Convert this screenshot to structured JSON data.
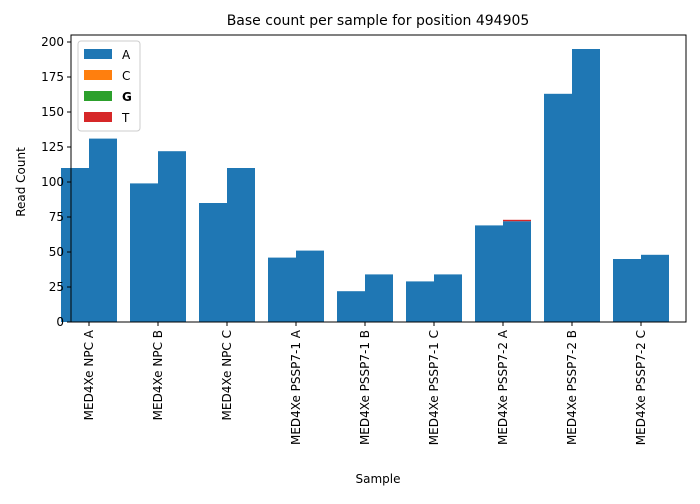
{
  "chart_data": {
    "type": "bar",
    "title": "Base count per sample for position 494905",
    "xlabel": "Sample",
    "ylabel": "Read Count",
    "ylim": [
      0,
      205
    ],
    "yticks": [
      0,
      25,
      50,
      75,
      100,
      125,
      150,
      175,
      200
    ],
    "grid": false,
    "legend_position": "upper-left",
    "categories": [
      "MED4Xe NPC A",
      "MED4Xe NPC B",
      "MED4Xe NPC C",
      "MED4Xe PSSP7-1 A",
      "MED4Xe PSSP7-1 B",
      "MED4Xe PSSP7-1 C",
      "MED4Xe PSSP7-2 A",
      "MED4Xe PSSP7-2 B",
      "MED4Xe PSSP7-2 C"
    ],
    "stack_layout": "two stacked bars per sample (left and right), each stacked A / C / G / T",
    "series": [
      {
        "name": "A",
        "color": "#1f77b4",
        "left": [
          110,
          99,
          85,
          46,
          22,
          29,
          69,
          163,
          45
        ],
        "right": [
          131,
          122,
          110,
          51,
          34,
          34,
          72,
          195,
          48
        ]
      },
      {
        "name": "C",
        "color": "#ff7f0e",
        "left": [
          0,
          0,
          0,
          0,
          0,
          0,
          0,
          0,
          0
        ],
        "right": [
          0,
          0,
          0,
          0,
          0,
          0,
          0,
          0,
          0
        ]
      },
      {
        "name": "G",
        "color": "#2ca02c",
        "legend_bold": true,
        "left": [
          0,
          0,
          0,
          0,
          0,
          0,
          0,
          0,
          0
        ],
        "right": [
          0,
          0,
          0,
          0,
          0,
          0,
          0,
          0,
          0
        ]
      },
      {
        "name": "T",
        "color": "#d62728",
        "left": [
          0,
          0,
          0,
          0,
          0,
          0,
          0,
          0,
          0
        ],
        "right": [
          0,
          0,
          0,
          0,
          0,
          0,
          1,
          0,
          0
        ]
      }
    ]
  }
}
